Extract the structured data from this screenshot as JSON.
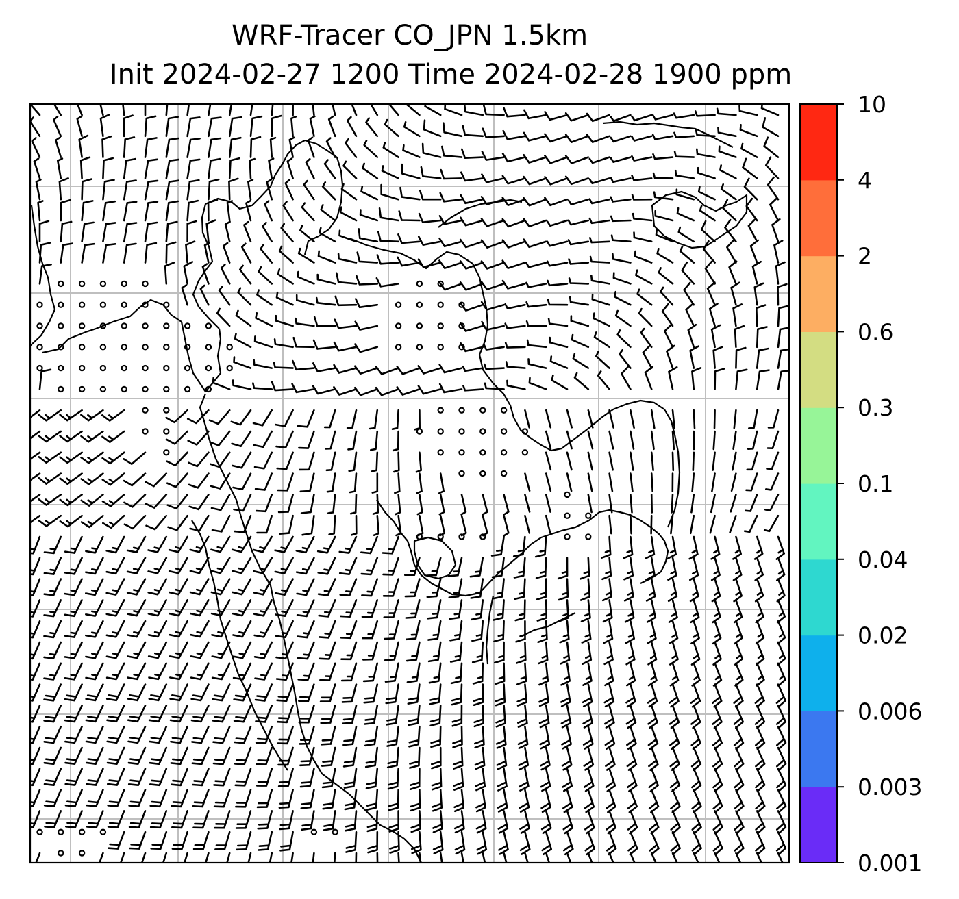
{
  "title": {
    "line1": "WRF-Tracer CO_JPN 1.5km",
    "line2": "Init 2024-02-27 1200 Time 2024-02-28 1900 ppm"
  },
  "map": {
    "field": "CO tracer concentration",
    "overlay": "wind barbs",
    "gridlines": true,
    "background": "#ffffff",
    "line_color": "#000000",
    "grid_color": "#bfbfbf"
  },
  "colorbar": {
    "orientation": "vertical",
    "placement": "right",
    "levels": [
      "0.001",
      "0.003",
      "0.006",
      "0.02",
      "0.04",
      "0.1",
      "0.3",
      "0.6",
      "2",
      "4",
      "10"
    ],
    "colors": [
      "#6a2cf7",
      "#3b78f0",
      "#0eb0ec",
      "#2ed8d0",
      "#62f5c0",
      "#97f598",
      "#d3dd82",
      "#fdae62",
      "#ff6e3a",
      "#ff2812"
    ]
  }
}
